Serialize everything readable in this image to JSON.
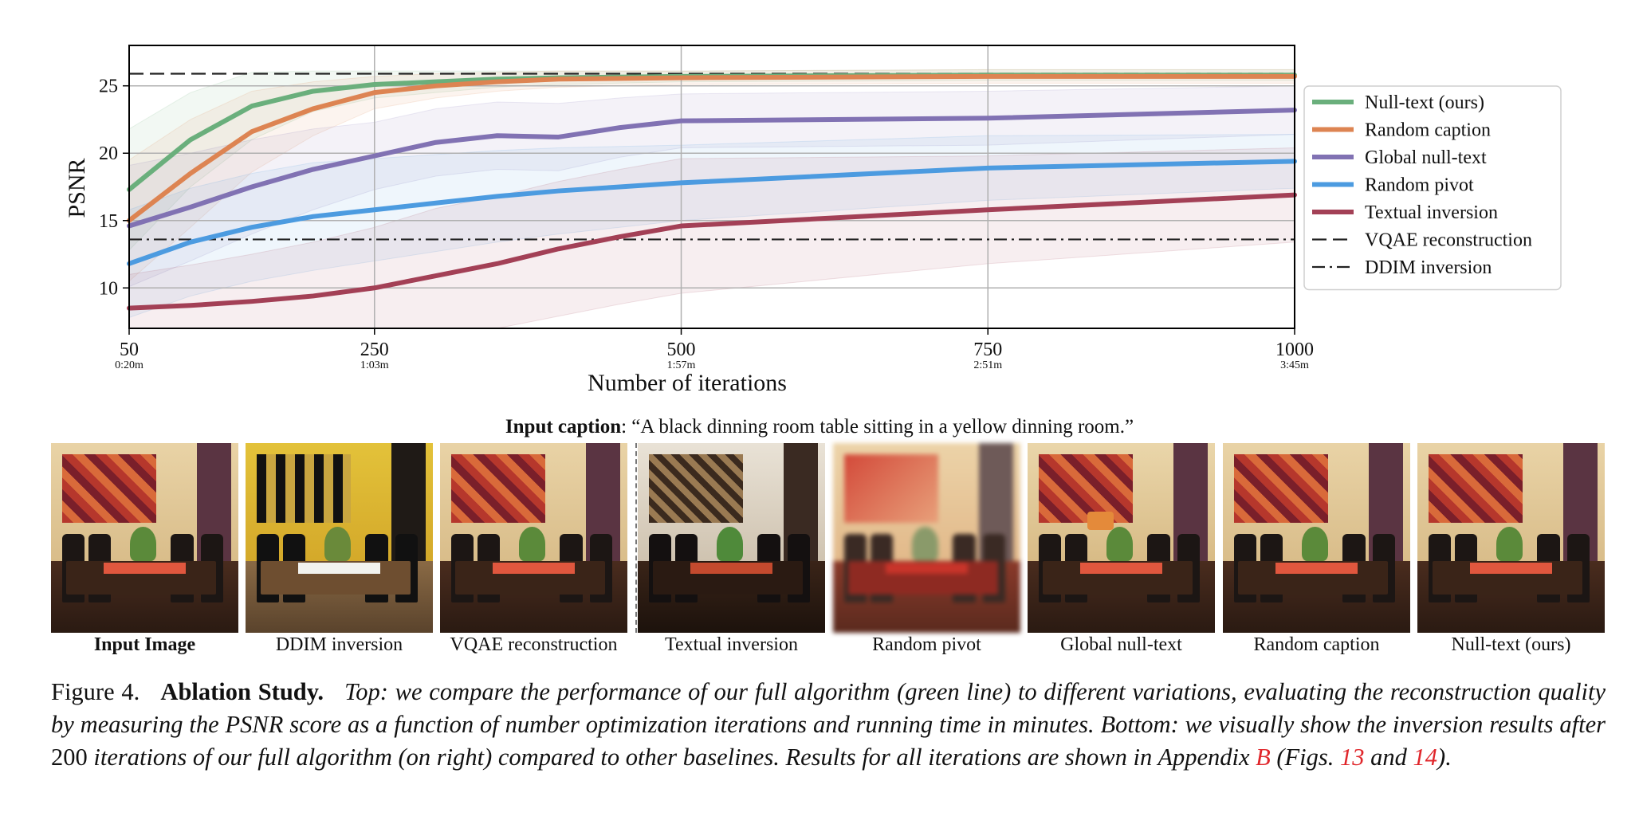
{
  "chart_data": {
    "type": "line",
    "xlabel": "Number of iterations",
    "ylabel": "PSNR",
    "xlim": [
      50,
      1000
    ],
    "ylim": [
      7,
      28
    ],
    "xticks": [
      {
        "value": 50,
        "label": "50",
        "sublabel": "0:20m"
      },
      {
        "value": 250,
        "label": "250",
        "sublabel": "1:03m"
      },
      {
        "value": 500,
        "label": "500",
        "sublabel": "1:57m"
      },
      {
        "value": 750,
        "label": "750",
        "sublabel": "2:51m"
      },
      {
        "value": 1000,
        "label": "1000",
        "sublabel": "3:45m"
      }
    ],
    "yticks": [
      10,
      15,
      20,
      25
    ],
    "grid": true,
    "legend_position": "right",
    "series": [
      {
        "name": "Null-text (ours)",
        "color": "#6aaf7c",
        "x": [
          50,
          100,
          150,
          200,
          250,
          300,
          350,
          400,
          500,
          750,
          1000
        ],
        "y": [
          17.3,
          21.0,
          23.5,
          24.6,
          25.1,
          25.3,
          25.5,
          25.6,
          25.7,
          25.8,
          25.8
        ],
        "band": [
          4.5,
          3.5,
          2.5,
          1.5,
          1.0,
          0.8,
          0.6,
          0.5,
          0.4,
          0.4,
          0.4
        ]
      },
      {
        "name": "Random caption",
        "color": "#dd8452",
        "x": [
          50,
          100,
          150,
          200,
          250,
          300,
          350,
          400,
          500,
          750,
          1000
        ],
        "y": [
          15.0,
          18.5,
          21.6,
          23.3,
          24.5,
          25.0,
          25.3,
          25.5,
          25.6,
          25.7,
          25.7
        ],
        "band": [
          4.5,
          4.0,
          3.0,
          2.0,
          1.2,
          0.9,
          0.7,
          0.6,
          0.5,
          0.5,
          0.5
        ]
      },
      {
        "name": "Global null-text",
        "color": "#8172b3",
        "x": [
          50,
          100,
          150,
          200,
          250,
          300,
          350,
          400,
          450,
          500,
          750,
          1000
        ],
        "y": [
          14.6,
          16.0,
          17.5,
          18.8,
          19.8,
          20.8,
          21.3,
          21.2,
          21.9,
          22.4,
          22.6,
          23.2
        ],
        "band": [
          4.5,
          4.0,
          3.5,
          3.0,
          2.5,
          2.5,
          2.5,
          2.5,
          2.2,
          2.0,
          2.0,
          1.8
        ]
      },
      {
        "name": "Random pivot",
        "color": "#4c9be0",
        "x": [
          50,
          100,
          150,
          200,
          250,
          300,
          350,
          400,
          450,
          500,
          750,
          1000
        ],
        "y": [
          11.8,
          13.4,
          14.5,
          15.3,
          15.8,
          16.3,
          16.8,
          17.2,
          17.5,
          17.8,
          18.9,
          19.4
        ],
        "band": [
          4.0,
          4.0,
          4.0,
          4.0,
          3.8,
          3.6,
          3.4,
          3.2,
          3.0,
          2.8,
          2.4,
          2.0
        ]
      },
      {
        "name": "Textual inversion",
        "color": "#a34056",
        "x": [
          50,
          100,
          150,
          200,
          250,
          300,
          350,
          400,
          450,
          500,
          750,
          1000
        ],
        "y": [
          8.5,
          8.7,
          9.0,
          9.4,
          10.0,
          10.9,
          11.8,
          12.9,
          13.8,
          14.6,
          15.8,
          16.9
        ],
        "band": [
          2.5,
          3.0,
          3.5,
          4.0,
          4.5,
          5.0,
          5.0,
          5.0,
          5.0,
          5.0,
          4.0,
          3.5
        ]
      }
    ],
    "reference_lines": [
      {
        "name": "VQAE reconstruction",
        "y": 25.9,
        "style": "dashed",
        "color": "#222222"
      },
      {
        "name": "DDIM inversion",
        "y": 13.6,
        "style": "dashdot",
        "color": "#222222"
      }
    ]
  },
  "input_caption": {
    "label": "Input caption",
    "text": ": “A black dinning room table sitting in a yellow dinning room.”"
  },
  "panels": [
    {
      "label": "Input Image",
      "bold": true,
      "variant": "warm"
    },
    {
      "label": "DDIM inversion",
      "bold": false,
      "variant": "yellow"
    },
    {
      "label": "VQAE reconstruction",
      "bold": false,
      "variant": "warm"
    },
    {
      "label": "Textual inversion",
      "bold": false,
      "variant": "dark"
    },
    {
      "label": "Random pivot",
      "bold": false,
      "variant": "blur"
    },
    {
      "label": "Global null-text",
      "bold": false,
      "variant": "warm-lamp"
    },
    {
      "label": "Random caption",
      "bold": false,
      "variant": "warm"
    },
    {
      "label": "Null-text (ours)",
      "bold": false,
      "variant": "warm"
    }
  ],
  "figure_caption": {
    "fig_label": "Figure 4.",
    "title": "Ablation Study.",
    "part1": "Top: we compare the performance of our full algorithm (green line) to different variations, evaluating the reconstruction quality by measuring the PSNR score as a function of number optimization iterations and running time in minutes. Bottom: we visually show the inversion results after",
    "number": "200",
    "part2": "iterations of our full algorithm (on right) compared to other baselines. Results for all iterations are shown in Appendix",
    "ref_appendix": "B",
    "part3": "(Figs.",
    "ref_fig1": "13",
    "and": "and",
    "ref_fig2": "14",
    "part4": ")."
  }
}
